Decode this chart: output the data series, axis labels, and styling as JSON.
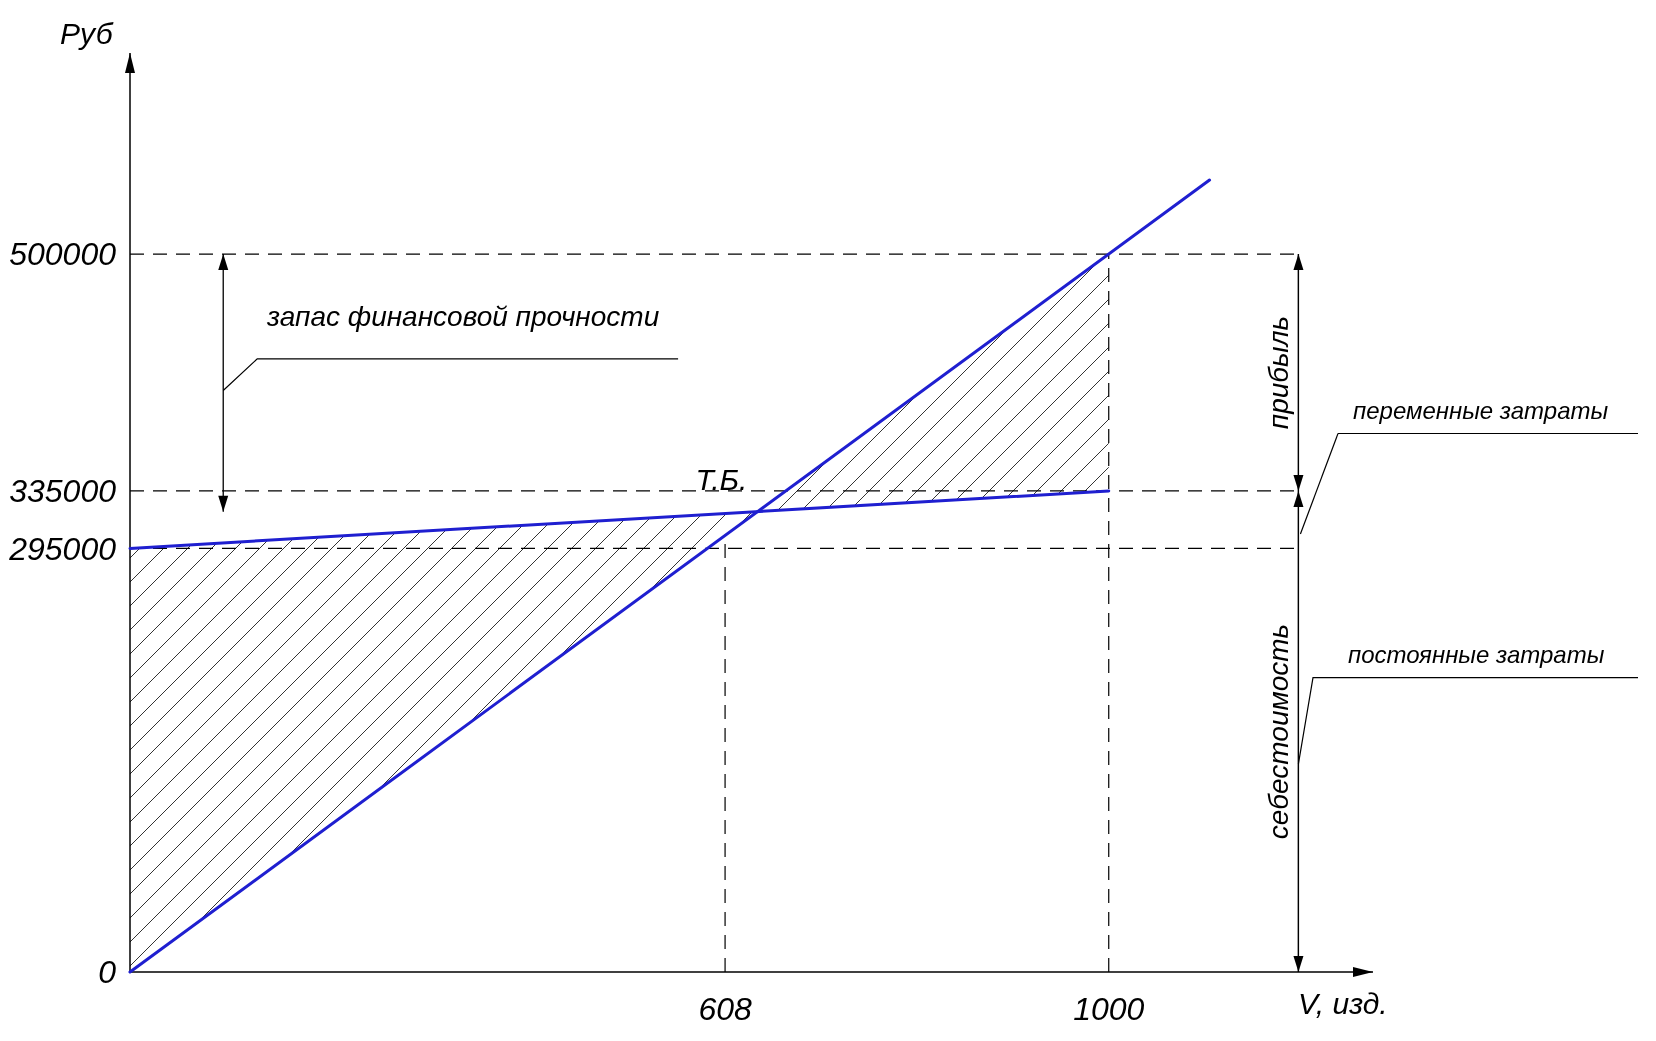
{
  "chart_data": {
    "type": "line",
    "xlabel": "V, изд.",
    "ylabel": "Руб",
    "xlim": [
      0,
      1270
    ],
    "ylim": [
      0,
      640000
    ],
    "xticks": [
      608,
      1000
    ],
    "yticks": [
      0,
      295000,
      335000,
      500000
    ],
    "grid": false,
    "marker": "none",
    "line_style": "solid",
    "series": [
      {
        "color": "#1f1fd0",
        "x": [
          0,
          1103
        ],
        "values": [
          0,
          551500
        ]
      },
      {
        "color": "#1f1fd0",
        "x": [
          0,
          1000
        ],
        "values": [
          295000,
          335000
        ],
        "lower": [
          0,
          500000
        ],
        "upper": [
          295000,
          335000
        ]
      }
    ],
    "ref_lines": [
      {
        "axis": "y",
        "value": 500000,
        "line_style": "dashed",
        "color": "#000000"
      },
      {
        "axis": "y",
        "value": 335000,
        "line_style": "dashed",
        "color": "#000000"
      },
      {
        "axis": "y",
        "value": 295000,
        "line_style": "dashed",
        "color": "#000000"
      },
      {
        "axis": "x",
        "value": 608,
        "line_style": "dashed",
        "color": "#000000"
      },
      {
        "axis": "x",
        "value": 1000,
        "line_style": "dashed",
        "color": "#000000"
      }
    ],
    "annotations": [
      {
        "text": "Т.Б.",
        "x": 641,
        "y": 320500
      },
      "запас финансовой прочности",
      "прибыль",
      "себестоимость",
      "переменные затраты",
      "постоянные затраты"
    ]
  }
}
